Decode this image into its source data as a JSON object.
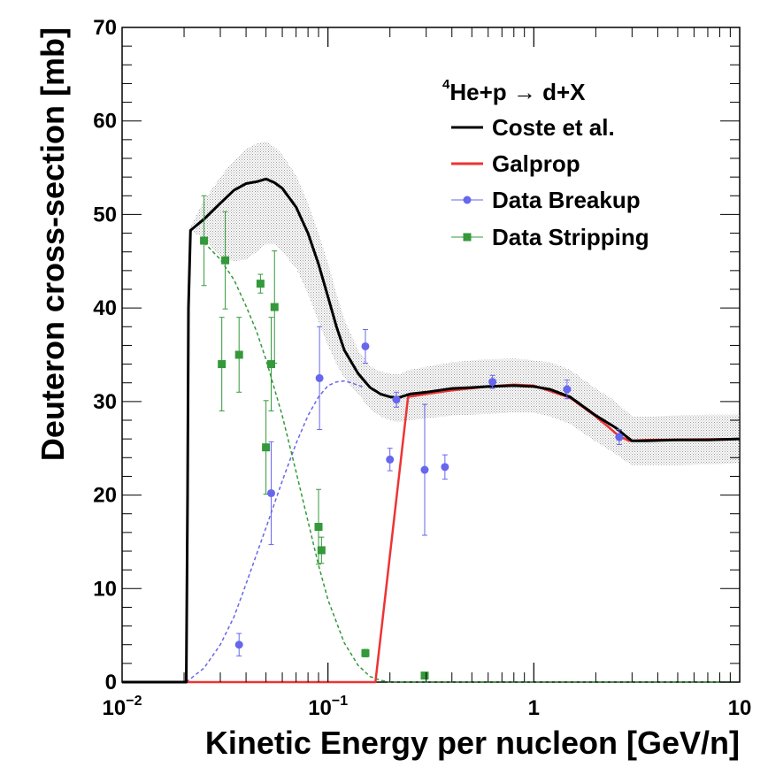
{
  "chart_data": {
    "type": "line",
    "title": "",
    "xlabel": "Kinetic Energy per nucleon [GeV/n]",
    "ylabel": "Deuteron cross-section [mb]",
    "xscale": "log",
    "xlim": [
      0.01,
      10
    ],
    "ylim": [
      0,
      70
    ],
    "y_ticks": [
      "0",
      "10",
      "20",
      "30",
      "40",
      "50",
      "60",
      "70"
    ],
    "x_tick_labels": [
      {
        "value": 0.01,
        "base": "10",
        "exp": "−2"
      },
      {
        "value": 0.1,
        "base": "10",
        "exp": "−1"
      },
      {
        "value": 1,
        "base": "1",
        "exp": ""
      },
      {
        "value": 10,
        "base": "10",
        "exp": ""
      }
    ],
    "colors": {
      "coste": "#000000",
      "galprop": "#ee3333",
      "breakup": "#6666ee",
      "stripping": "#33993a",
      "band": "#999999"
    },
    "legend": {
      "position": "top-right",
      "reaction_sup": "4",
      "reaction_main": "He+p  → d+X",
      "entries": [
        {
          "key": "coste",
          "label": "Coste et al.",
          "style": "line"
        },
        {
          "key": "galprop",
          "label": "Galprop",
          "style": "line"
        },
        {
          "key": "breakup",
          "label": "Data Breakup",
          "style": "circle"
        },
        {
          "key": "stripping",
          "label": "Data Stripping",
          "style": "square"
        }
      ]
    },
    "series": [
      {
        "name": "Coste et al.",
        "key": "coste",
        "x": [
          0.01,
          0.0205,
          0.0208,
          0.021,
          0.0215,
          0.025,
          0.03,
          0.035,
          0.04,
          0.045,
          0.05,
          0.055,
          0.06,
          0.07,
          0.08,
          0.09,
          0.1,
          0.11,
          0.12,
          0.14,
          0.16,
          0.18,
          0.2,
          0.22,
          0.25,
          0.3,
          0.4,
          0.5,
          0.6,
          0.8,
          1.0,
          1.2,
          1.5,
          2.0,
          2.5,
          2.8,
          3.0,
          3.5,
          5,
          7,
          10
        ],
        "y": [
          0,
          0,
          20,
          40,
          48.3,
          49.5,
          51.2,
          52.6,
          53.3,
          53.5,
          53.8,
          53.4,
          52.8,
          50.8,
          48,
          44.7,
          41.2,
          38,
          35.5,
          33,
          31.5,
          30.8,
          30.5,
          30.4,
          30.8,
          31,
          31.4,
          31.5,
          31.6,
          31.7,
          31.6,
          31.3,
          30.5,
          28.5,
          27.2,
          26.3,
          25.8,
          25.8,
          25.9,
          25.9,
          26
        ]
      },
      {
        "name": "Galprop",
        "key": "galprop",
        "x": [
          0.01,
          0.17,
          0.245,
          0.3,
          0.4,
          0.6,
          0.8,
          1.0,
          1.5,
          2.0,
          2.6,
          2.9,
          3.5,
          10
        ],
        "y": [
          0,
          0,
          30.5,
          30.8,
          31.2,
          31.6,
          31.8,
          31.7,
          30.4,
          28.4,
          26.3,
          25.8,
          25.9,
          26
        ]
      },
      {
        "name": "Breakup fit",
        "key": "breakup",
        "dashed": true,
        "x": [
          0.0205,
          0.025,
          0.03,
          0.035,
          0.04,
          0.05,
          0.06,
          0.07,
          0.08,
          0.09,
          0.1,
          0.11,
          0.12,
          0.13,
          0.15
        ],
        "y": [
          0,
          1.5,
          4,
          7,
          10.5,
          16.5,
          21.5,
          25.5,
          28.5,
          30.5,
          31.7,
          32.1,
          32.2,
          32,
          31.5
        ]
      },
      {
        "name": "Stripping fit",
        "key": "stripping",
        "dashed": true,
        "x": [
          0.025,
          0.03,
          0.035,
          0.04,
          0.045,
          0.05,
          0.06,
          0.07,
          0.08,
          0.09,
          0.1,
          0.12,
          0.14,
          0.16,
          0.18,
          0.2,
          0.25,
          1.0,
          10
        ],
        "y": [
          47,
          45.2,
          43,
          40.2,
          37.5,
          34.5,
          28.5,
          22.5,
          17.2,
          12.5,
          8.8,
          4.2,
          1.8,
          0.6,
          0.2,
          0,
          0,
          0,
          0
        ]
      }
    ],
    "band": {
      "name": "Coste uncertainty",
      "x": [
        0.021,
        0.025,
        0.03,
        0.035,
        0.04,
        0.045,
        0.05,
        0.055,
        0.06,
        0.07,
        0.08,
        0.09,
        0.1,
        0.11,
        0.12,
        0.14,
        0.16,
        0.18,
        0.2,
        0.22,
        0.25,
        0.3,
        0.4,
        0.5,
        0.6,
        0.8,
        1.0,
        1.2,
        1.5,
        2.0,
        2.5,
        2.8,
        3.0,
        3.5,
        5,
        7,
        10
      ],
      "lower": [
        48.3,
        47.5,
        45.5,
        45,
        45.2,
        46,
        46.8,
        46.8,
        46,
        44.3,
        41.5,
        38.5,
        36,
        34,
        32.5,
        30.8,
        29.2,
        28.4,
        28,
        27.8,
        28,
        28.2,
        28.5,
        28.6,
        28.7,
        28.8,
        28.8,
        28.4,
        27.6,
        25.7,
        24.4,
        23.6,
        23.2,
        23.2,
        23.2,
        23.3,
        23.4
      ],
      "upper": [
        48.3,
        51.5,
        54,
        55.8,
        57,
        57.6,
        57.8,
        57.2,
        56.4,
        54.2,
        51.2,
        48,
        44.8,
        41.5,
        38.8,
        35.5,
        33.8,
        33.2,
        33,
        32.9,
        33.4,
        33.7,
        34.2,
        34.4,
        34.5,
        34.6,
        34.4,
        34.2,
        33.4,
        31.4,
        30,
        29,
        28.4,
        28.4,
        28.5,
        28.6,
        28.6
      ]
    },
    "points": {
      "breakup": [
        {
          "x": 0.037,
          "y": 4,
          "err": 1.2
        },
        {
          "x": 0.053,
          "y": 20.2,
          "err": 5.5
        },
        {
          "x": 0.091,
          "y": 32.5,
          "err": 5.5
        },
        {
          "x": 0.152,
          "y": 35.9,
          "err": 1.8
        },
        {
          "x": 0.215,
          "y": 30.2,
          "err": 0.8
        },
        {
          "x": 0.2,
          "y": 23.8,
          "err": 1.2
        },
        {
          "x": 0.295,
          "y": 22.7,
          "err": 7
        },
        {
          "x": 0.37,
          "y": 23,
          "err": 1.3
        },
        {
          "x": 0.63,
          "y": 32.1,
          "err": 0.7
        },
        {
          "x": 1.45,
          "y": 31.3,
          "err": 1
        },
        {
          "x": 2.6,
          "y": 26.2,
          "err": 0.8
        }
      ],
      "stripping": [
        {
          "x": 0.025,
          "y": 47.2,
          "err": 4.8
        },
        {
          "x": 0.0305,
          "y": 34,
          "err": 5
        },
        {
          "x": 0.0317,
          "y": 45.1,
          "err": 5.2
        },
        {
          "x": 0.037,
          "y": 35,
          "err": 4
        },
        {
          "x": 0.047,
          "y": 42.6,
          "err": 1
        },
        {
          "x": 0.05,
          "y": 25.1,
          "err": 5
        },
        {
          "x": 0.053,
          "y": 34,
          "err": 5
        },
        {
          "x": 0.055,
          "y": 40.1,
          "err": 6
        },
        {
          "x": 0.09,
          "y": 16.6,
          "err": 4
        },
        {
          "x": 0.093,
          "y": 14.1,
          "err": 1.4
        },
        {
          "x": 0.152,
          "y": 3.1,
          "err": 0.4
        },
        {
          "x": 0.295,
          "y": 0.7,
          "err": 0.2
        }
      ]
    }
  }
}
